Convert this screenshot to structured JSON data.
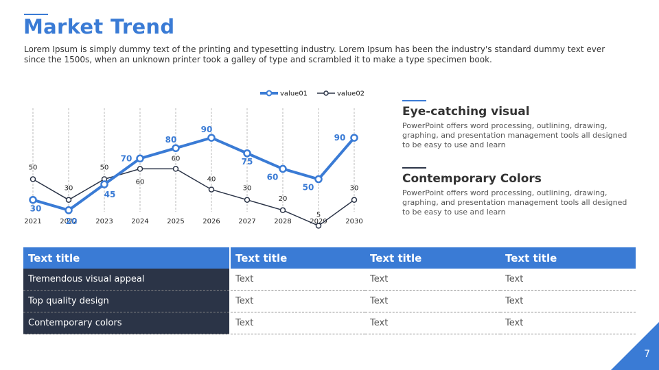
{
  "header": {
    "title": "Market Trend",
    "intro": "Lorem Ipsum is simply dummy text of the printing and typesetting industry. Lorem Ipsum has been the industry's standard dummy text ever since the 1500s, when an unknown printer took a galley of type and scrambled it to make a type specimen book."
  },
  "colors": {
    "accent": "#3a7bd5",
    "dark": "#2b3447"
  },
  "chart_data": {
    "type": "line",
    "x": [
      "2021",
      "2022",
      "2023",
      "2024",
      "2025",
      "2026",
      "2027",
      "2028",
      "2029",
      "2030"
    ],
    "series": [
      {
        "name": "value01",
        "values": [
          30,
          20,
          45,
          70,
          80,
          90,
          75,
          60,
          50,
          90
        ],
        "color": "#3a7bd5"
      },
      {
        "name": "value02",
        "values": [
          50,
          30,
          50,
          60,
          60,
          40,
          30,
          20,
          5,
          30
        ],
        "color": "#2b3447"
      }
    ],
    "ylim": [
      0,
      100
    ],
    "legend": "top-right",
    "grid": "vertical dashed"
  },
  "sidebar": [
    {
      "title": "Eye-catching visual",
      "text": "PowerPoint offers word processing, outlining, drawing, graphing, and presentation management tools all designed to be easy to use and learn"
    },
    {
      "title": "Contemporary Colors",
      "text": "PowerPoint offers word processing, outlining, drawing, graphing, and presentation management tools all designed to be easy to use and learn"
    }
  ],
  "table": {
    "headers": [
      "Text title",
      "Text title",
      "Text title",
      "Text title"
    ],
    "rows": [
      [
        "Tremendous visual appeal",
        "Text",
        "Text",
        "Text"
      ],
      [
        "Top quality design",
        "Text",
        "Text",
        "Text"
      ],
      [
        "Contemporary colors",
        "Text",
        "Text",
        "Text"
      ]
    ]
  },
  "page_number": "7"
}
